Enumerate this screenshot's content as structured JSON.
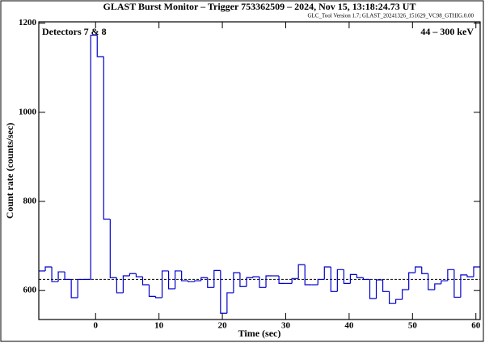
{
  "chart_data": {
    "type": "histogram",
    "title": "GLAST Burst Monitor  –  Trigger 753362509  –  2024, Nov 15, 13:18:24.73 UT",
    "subtitle": "GLC_Tool Version 1.7; GLAST_20241326_151629_VC98_GTHIG.0.00",
    "annotations": [
      "Detectors 7 & 8",
      "44 – 300 keV"
    ],
    "x_label": "Time (sec)",
    "y_label": "Count rate (counts/sec)",
    "bins": [
      -8.96,
      -7.936,
      -6.912,
      -5.888,
      -4.864,
      -3.84,
      -2.816,
      -1.792,
      -0.768,
      0.256,
      1.28,
      2.304,
      3.328,
      4.352,
      5.376,
      6.4,
      7.424,
      8.448,
      9.472,
      10.496,
      11.52,
      12.544,
      13.568,
      14.592,
      15.616,
      16.64,
      17.664,
      18.688,
      19.712,
      20.736,
      21.76,
      22.784,
      23.808,
      24.832,
      25.856,
      26.88,
      27.904,
      28.928,
      29.952,
      30.976,
      32.0,
      33.024,
      34.048,
      35.072,
      36.096,
      37.12,
      38.144,
      39.168,
      40.192,
      41.216,
      42.24,
      43.264,
      44.288,
      45.312,
      46.336,
      47.36,
      48.384,
      49.408,
      50.432,
      51.456,
      52.48,
      53.504,
      54.528,
      55.552,
      56.576,
      57.6,
      58.624,
      59.648,
      60.672
    ],
    "values": [
      644,
      653,
      620,
      642,
      625,
      584,
      625,
      625,
      1173,
      1125,
      760,
      629,
      595,
      633,
      638,
      631,
      613,
      587,
      584,
      644,
      604,
      644,
      622,
      620,
      622,
      629,
      607,
      645,
      549,
      595,
      640,
      609,
      629,
      631,
      607,
      633,
      633,
      616,
      616,
      627,
      658,
      613,
      613,
      625,
      653,
      598,
      647,
      616,
      636,
      629,
      625,
      582,
      624,
      598,
      571,
      580,
      602,
      640,
      653,
      638,
      602,
      615,
      622,
      647,
      585,
      635,
      631,
      653
    ],
    "color": "#0000cc",
    "background_level": 625,
    "xlim": [
      -8.96,
      60.672
    ],
    "ylim": [
      535,
      1203
    ],
    "xticks": [
      0,
      10,
      20,
      30,
      40,
      50,
      60
    ],
    "yticks": [
      600,
      800,
      1000,
      1200
    ]
  }
}
